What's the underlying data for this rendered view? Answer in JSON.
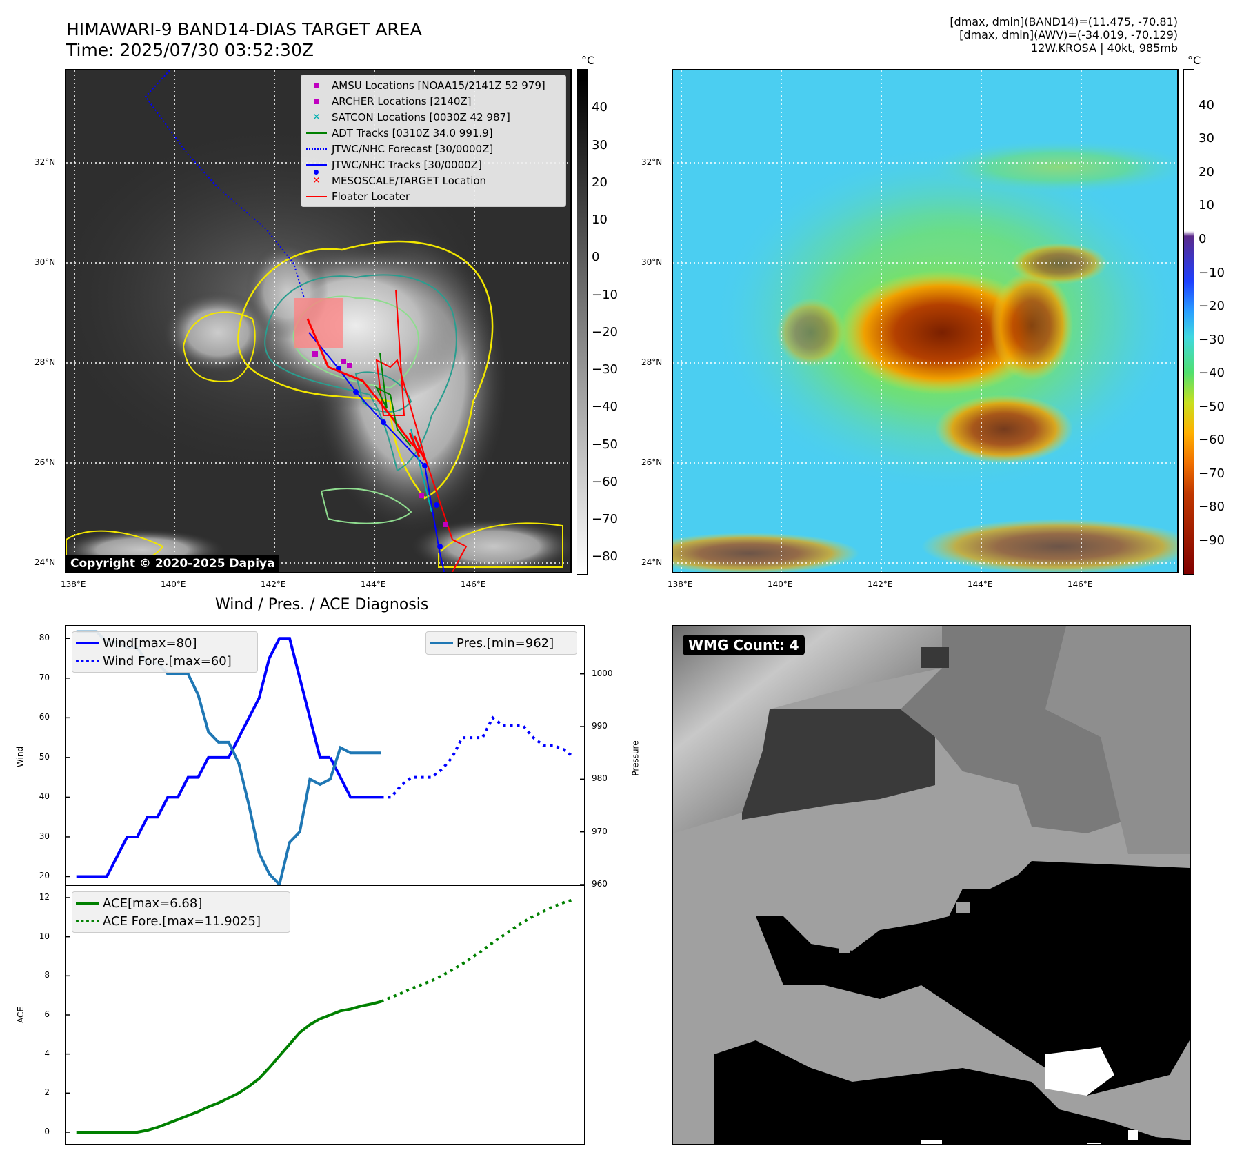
{
  "header": {
    "title_line1": "HIMAWARI-9 BAND14-DIAS TARGET AREA",
    "title_line2": "Time: 2025/07/30 03:52:30Z",
    "info_line1": "[dmax, dmin](BAND14)=(11.475, -70.81)",
    "info_line2": "[dmax, dmin](AWV)=(-34.019, -70.129)",
    "info_line3": "12W.KROSA | 40kt, 985mb"
  },
  "map": {
    "lon_ticks": [
      "138°E",
      "140°E",
      "142°E",
      "144°E",
      "146°E"
    ],
    "lat_ticks": [
      "32°N",
      "30°N",
      "28°N",
      "26°N",
      "24°N"
    ],
    "copyright": "Copyright © 2020-2025 Dapiya",
    "legend": [
      {
        "label": "AMSU Locations [NOAA15/2141Z 52 979]",
        "symbol": "square",
        "color": "#c000c0"
      },
      {
        "label": "ARCHER Locations [2140Z]",
        "symbol": "square",
        "color": "#c000c0"
      },
      {
        "label": "SATCON Locations [0030Z 42 987]",
        "symbol": "x",
        "color": "#00b0b0"
      },
      {
        "label": "ADT Tracks [0310Z 34.0 991.9]",
        "symbol": "line",
        "color": "#008000"
      },
      {
        "label": "JTWC/NHC Forecast [30/0000Z]",
        "symbol": "dotted",
        "color": "#0000ff"
      },
      {
        "label": "JTWC/NHC Tracks [30/0000Z]",
        "symbol": "line-dot",
        "color": "#0000ff"
      },
      {
        "label": "MESOSCALE/TARGET Location",
        "symbol": "x",
        "color": "#ff0000"
      },
      {
        "label": "Floater Locater",
        "symbol": "line",
        "color": "#ff0000"
      }
    ]
  },
  "colorbar_left": {
    "unit": "°C",
    "ticks": [
      "40",
      "30",
      "20",
      "10",
      "0",
      "−10",
      "−20",
      "−30",
      "−40",
      "−50",
      "−60",
      "−70",
      "−80"
    ]
  },
  "colorbar_right": {
    "unit": "°C",
    "ticks": [
      "40",
      "30",
      "20",
      "10",
      "0",
      "−10",
      "−20",
      "−30",
      "−40",
      "−50",
      "−60",
      "−70",
      "−80",
      "−90"
    ]
  },
  "wmg": {
    "label": "WMG Count: 4"
  },
  "chart_data": [
    {
      "type": "line",
      "title": "Wind / Pres. / ACE Diagnosis",
      "ylabel": "Wind",
      "y2label": "Pressure",
      "ylim": [
        18,
        83
      ],
      "y2lim": [
        960,
        1009
      ],
      "yticks": [
        "80",
        "70",
        "60",
        "50",
        "40",
        "30",
        "20"
      ],
      "y2ticks": [
        "1000",
        "990",
        "980",
        "970",
        "960"
      ],
      "series": [
        {
          "name": "Wind[max=80]",
          "color": "#0000ff",
          "style": "solid",
          "x": [
            0,
            1,
            2,
            3,
            4,
            5,
            6,
            7,
            8,
            9,
            10,
            11,
            12,
            13,
            14,
            15,
            16,
            17,
            18,
            19,
            20,
            21,
            22,
            23,
            24,
            25
          ],
          "values": [
            20,
            20,
            20,
            20,
            25,
            30,
            30,
            35,
            35,
            40,
            40,
            45,
            45,
            50,
            50,
            50,
            55,
            60,
            65,
            75,
            80,
            80,
            70,
            60,
            50,
            50
          ]
        },
        {
          "name": "Wind[max=80]",
          "color": "#0000ff",
          "style": "solid",
          "x": [
            25,
            26,
            27,
            28,
            29,
            30
          ],
          "values": [
            50,
            45,
            40,
            40,
            40,
            40
          ]
        },
        {
          "name": "Wind Fore.[max=60]",
          "color": "#0000ff",
          "style": "dotted",
          "x": [
            30,
            31,
            32,
            33,
            34,
            35,
            36,
            37,
            38,
            39,
            40,
            41,
            42,
            43,
            44,
            45,
            46,
            47,
            48,
            49
          ],
          "values": [
            40,
            40,
            43,
            45,
            45,
            45,
            47,
            50,
            55,
            55,
            55,
            60,
            58,
            58,
            58,
            55,
            53,
            53,
            52,
            50
          ]
        },
        {
          "name": "Pres.[min=962]",
          "color": "#1f77b4",
          "style": "solid",
          "axis": "y2",
          "x": [
            0,
            1,
            2,
            3,
            4,
            5,
            6,
            7,
            8,
            9,
            10,
            11,
            12,
            13,
            14,
            15,
            16,
            17,
            18,
            19,
            20,
            21,
            22,
            23,
            24,
            25,
            26,
            27,
            28,
            29,
            30
          ],
          "values": [
            1008,
            1008,
            1008,
            1006,
            1006,
            1005,
            1005,
            1002,
            1002,
            1000,
            1000,
            1000,
            996,
            989,
            987,
            987,
            983,
            975,
            966,
            962,
            960,
            968,
            970,
            980,
            979,
            980,
            986,
            985,
            985,
            985,
            985
          ]
        }
      ]
    },
    {
      "type": "line",
      "ylabel": "ACE",
      "ylim": [
        -0.6,
        12.6
      ],
      "yticks": [
        "12",
        "10",
        "8",
        "6",
        "4",
        "2",
        "0"
      ],
      "series": [
        {
          "name": "ACE[max=6.68]",
          "color": "#008000",
          "style": "solid",
          "x": [
            0,
            1,
            2,
            3,
            4,
            5,
            6,
            7,
            8,
            9,
            10,
            11,
            12,
            13,
            14,
            15,
            16,
            17,
            18,
            19,
            20,
            21,
            22,
            23,
            24,
            25,
            26,
            27,
            28,
            29,
            30
          ],
          "values": [
            0,
            0,
            0,
            0,
            0,
            0,
            0,
            0.1,
            0.25,
            0.45,
            0.65,
            0.85,
            1.05,
            1.3,
            1.5,
            1.75,
            2.0,
            2.35,
            2.75,
            3.3,
            3.9,
            4.5,
            5.1,
            5.5,
            5.8,
            6.0,
            6.2,
            6.3,
            6.45,
            6.55,
            6.68
          ]
        },
        {
          "name": "ACE Fore.[max=11.9025]",
          "color": "#008000",
          "style": "dotted",
          "x": [
            30,
            31,
            32,
            33,
            34,
            35,
            36,
            37,
            38,
            39,
            40,
            41,
            42,
            43,
            44,
            45,
            46,
            47,
            48,
            49
          ],
          "values": [
            6.68,
            6.9,
            7.1,
            7.35,
            7.55,
            7.75,
            8.0,
            8.3,
            8.6,
            8.95,
            9.3,
            9.7,
            10.05,
            10.4,
            10.75,
            11.05,
            11.3,
            11.55,
            11.75,
            11.9025
          ]
        }
      ]
    }
  ]
}
